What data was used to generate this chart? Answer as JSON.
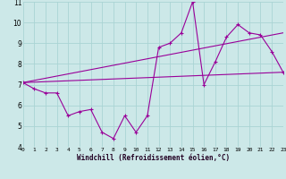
{
  "xlabel": "Windchill (Refroidissement éolien,°C)",
  "bg_color": "#cce8e8",
  "grid_color": "#aad4d4",
  "line_color": "#990099",
  "xlim": [
    0,
    23
  ],
  "ylim": [
    4,
    11
  ],
  "yticks": [
    4,
    5,
    6,
    7,
    8,
    9,
    10,
    11
  ],
  "xticks": [
    0,
    1,
    2,
    3,
    4,
    5,
    6,
    7,
    8,
    9,
    10,
    11,
    12,
    13,
    14,
    15,
    16,
    17,
    18,
    19,
    20,
    21,
    22,
    23
  ],
  "curve1_x": [
    0,
    1,
    2,
    3,
    4,
    5,
    6,
    7,
    8,
    9,
    10,
    11,
    12,
    13,
    14,
    15,
    16,
    17,
    18,
    19,
    20,
    21,
    22,
    23
  ],
  "curve1_y": [
    7.1,
    6.8,
    6.6,
    6.6,
    5.5,
    5.7,
    5.8,
    4.7,
    4.4,
    5.5,
    4.7,
    5.5,
    8.8,
    9.0,
    9.5,
    11.0,
    7.0,
    8.1,
    9.3,
    9.9,
    9.5,
    9.4,
    8.6,
    7.6
  ],
  "curve2_x": [
    0,
    23
  ],
  "curve2_y": [
    7.1,
    7.6
  ],
  "curve3_x": [
    0,
    23
  ],
  "curve3_y": [
    7.1,
    9.5
  ]
}
